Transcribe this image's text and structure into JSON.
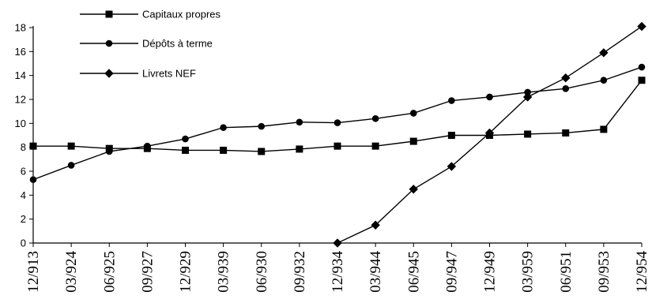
{
  "chart_data": {
    "type": "line",
    "title": "",
    "xlabel": "",
    "ylabel": "",
    "categories": [
      "12/913",
      "03/924",
      "06/925",
      "09/927",
      "12/929",
      "03/939",
      "06/930",
      "09/932",
      "12/934",
      "03/944",
      "06/945",
      "09/947",
      "12/949",
      "03/959",
      "06/951",
      "09/953",
      "12/954"
    ],
    "ylim": [
      0,
      18
    ],
    "yticks": [
      0,
      2,
      4,
      6,
      8,
      10,
      12,
      14,
      16,
      18
    ],
    "grid": false,
    "legend_position": "top-left",
    "series": [
      {
        "name": "Capitaux propres",
        "marker": "square",
        "values": [
          8.1,
          8.1,
          7.9,
          7.9,
          7.75,
          7.75,
          7.65,
          7.85,
          8.1,
          8.1,
          8.5,
          9.0,
          9.0,
          9.1,
          9.2,
          9.5,
          13.6
        ]
      },
      {
        "name": "Dépôts à terme",
        "marker": "circle",
        "values": [
          5.3,
          6.5,
          7.65,
          8.1,
          8.7,
          9.65,
          9.75,
          10.1,
          10.05,
          10.4,
          10.85,
          11.9,
          12.2,
          12.6,
          12.9,
          13.6,
          14.7
        ]
      },
      {
        "name": "Livrets NEF",
        "marker": "diamond",
        "values": [
          null,
          null,
          null,
          null,
          null,
          null,
          null,
          null,
          0,
          1.5,
          4.5,
          6.4,
          9.2,
          12.2,
          13.8,
          15.9,
          18.1
        ]
      }
    ]
  }
}
